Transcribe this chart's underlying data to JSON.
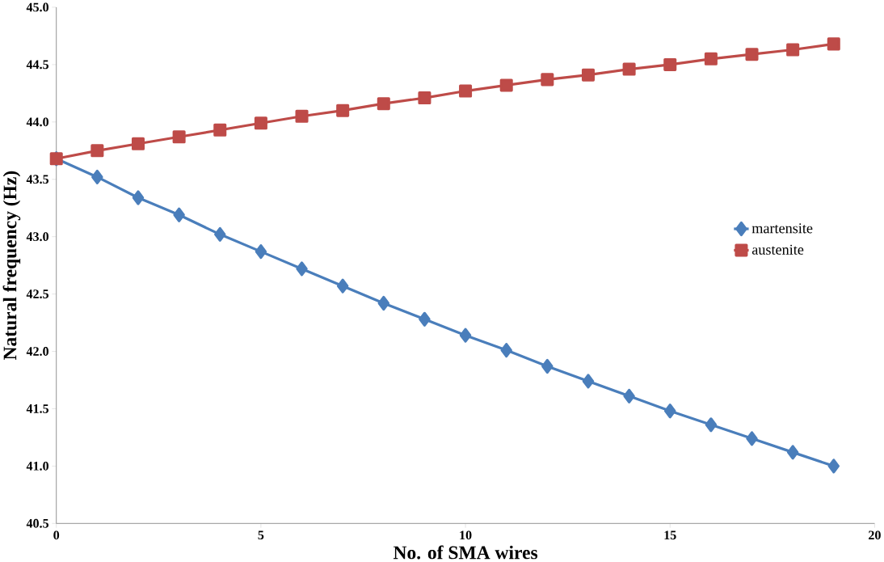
{
  "chart_data": {
    "type": "line",
    "xlabel": "No. of SMA wires",
    "ylabel": "Natural frequency (Hz)",
    "x": [
      0,
      1,
      2,
      3,
      4,
      5,
      6,
      7,
      8,
      9,
      10,
      11,
      12,
      13,
      14,
      15,
      16,
      17,
      18,
      19
    ],
    "series": [
      {
        "name": "martensite",
        "color": "#4a7ebb",
        "marker": "diamond",
        "values": [
          43.68,
          43.52,
          43.34,
          43.19,
          43.02,
          42.87,
          42.72,
          42.57,
          42.42,
          42.28,
          42.14,
          42.01,
          41.87,
          41.74,
          41.61,
          41.48,
          41.36,
          41.24,
          41.12,
          41.0
        ]
      },
      {
        "name": "austenite",
        "color": "#be4b48",
        "marker": "square",
        "values": [
          43.68,
          43.75,
          43.81,
          43.87,
          43.93,
          43.99,
          44.05,
          44.1,
          44.16,
          44.21,
          44.27,
          44.32,
          44.37,
          44.41,
          44.46,
          44.5,
          44.55,
          44.59,
          44.63,
          44.68
        ]
      }
    ],
    "xlim": [
      0,
      20
    ],
    "xticks": [
      0,
      5,
      10,
      15,
      20
    ],
    "ylim": [
      40.5,
      45.0
    ],
    "yticks": [
      {
        "value": 40.5,
        "label": "40.5"
      },
      {
        "value": 41.0,
        "label": "41.0"
      },
      {
        "value": 41.5,
        "label": "41.5"
      },
      {
        "value": 42.0,
        "label": "42.0"
      },
      {
        "value": 42.5,
        "label": "42.5"
      },
      {
        "value": 43.0,
        "label": "43.0"
      },
      {
        "value": 43.5,
        "label": "43.5"
      },
      {
        "value": 44.0,
        "label": "44.0"
      },
      {
        "value": 44.5,
        "label": "44.5"
      },
      {
        "value": 45.0,
        "label": "45.0"
      }
    ],
    "grid": false,
    "legend": "right",
    "line_style": "solid"
  }
}
